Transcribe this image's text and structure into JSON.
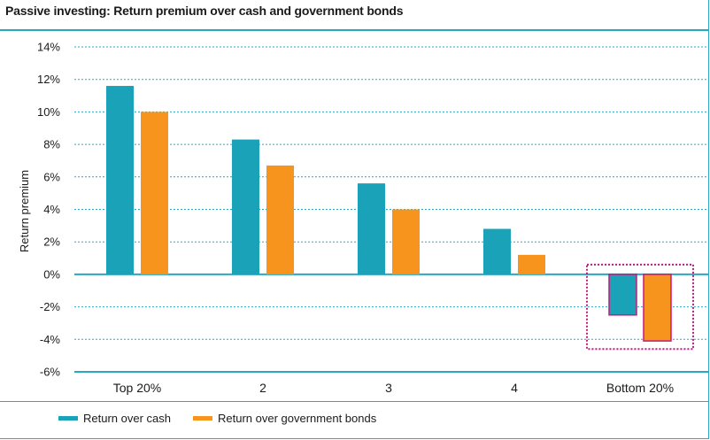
{
  "title": "Passive investing: Return premium over cash and government bonds",
  "colors": {
    "cash": "#1aa2b8",
    "bonds": "#f7941d",
    "accent": "#2aa7c1",
    "highlight": "#c6197d"
  },
  "chart_data": {
    "type": "bar",
    "title": "Passive investing: Return premium over cash and government bonds",
    "xlabel": "",
    "ylabel": "Return premium",
    "ylim": [
      -6,
      14
    ],
    "yticks": [
      14,
      12,
      10,
      8,
      6,
      4,
      2,
      0,
      -2,
      -4,
      -6
    ],
    "ytick_labels": [
      "14%",
      "12%",
      "10%",
      "8%",
      "6%",
      "4%",
      "2%",
      "0%",
      "-2%",
      "-4%",
      "-6%"
    ],
    "categories": [
      "Top 20%",
      "2",
      "3",
      "4",
      "Bottom 20%"
    ],
    "series": [
      {
        "name": "Return over cash",
        "values": [
          11.6,
          8.3,
          5.6,
          2.8,
          -2.5
        ]
      },
      {
        "name": "Return over government bonds",
        "values": [
          10.0,
          6.7,
          4.0,
          1.2,
          -4.1
        ]
      }
    ],
    "grid": true,
    "legend_position": "bottom",
    "highlighted_category": "Bottom 20%"
  },
  "legend": {
    "cash_label": "Return over cash",
    "bonds_label": "Return over government bonds"
  }
}
